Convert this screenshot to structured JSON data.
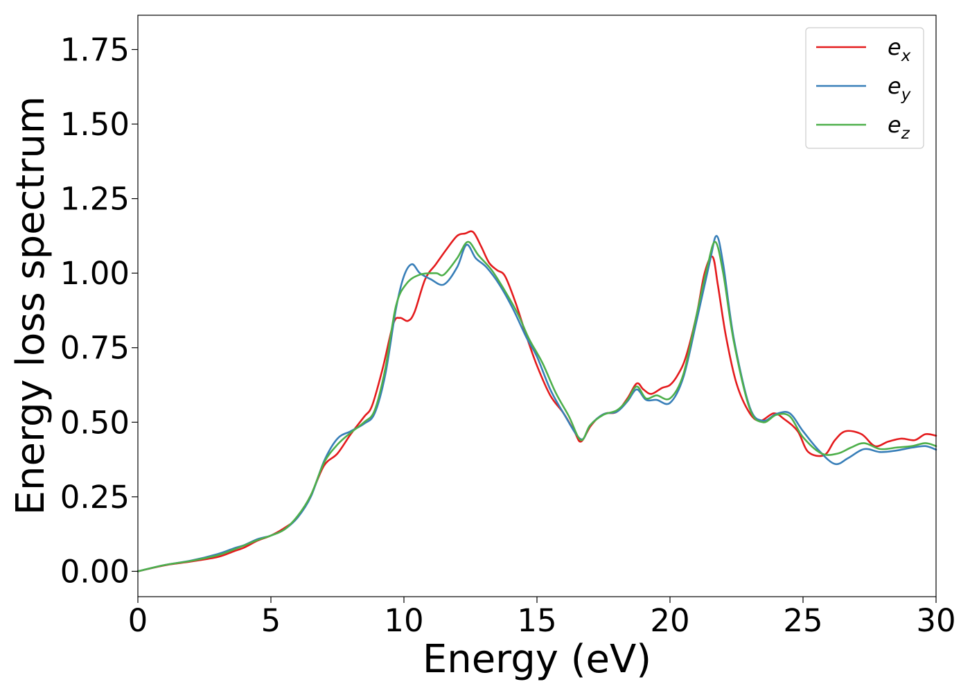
{
  "chart_data": {
    "type": "line",
    "title": "",
    "xlabel": "Energy (eV)",
    "ylabel": "Energy loss spectrum",
    "xlim": [
      0,
      30
    ],
    "ylim": [
      -0.085,
      1.865
    ],
    "xticks": [
      0,
      5,
      10,
      15,
      20,
      25,
      30
    ],
    "xtick_labels": [
      "0",
      "5",
      "10",
      "15",
      "20",
      "25",
      "30"
    ],
    "yticks": [
      0,
      0.25,
      0.5,
      0.75,
      1.0,
      1.25,
      1.5,
      1.75
    ],
    "ytick_labels": [
      "0.00",
      "0.25",
      "0.50",
      "0.75",
      "1.00",
      "1.25",
      "1.50",
      "1.75"
    ],
    "grid": false,
    "legend_position": "top-right",
    "series": [
      {
        "name": "e_x",
        "label_base": "e",
        "label_sub": "x",
        "color": "#e41a1c",
        "points": [
          [
            0,
            0
          ],
          [
            1,
            0.02
          ],
          [
            2,
            0.033
          ],
          [
            3,
            0.048
          ],
          [
            3.6,
            0.067
          ],
          [
            4,
            0.08
          ],
          [
            4.5,
            0.103
          ],
          [
            5,
            0.12
          ],
          [
            5.5,
            0.145
          ],
          [
            6,
            0.18
          ],
          [
            6.5,
            0.255
          ],
          [
            7,
            0.355
          ],
          [
            7.5,
            0.395
          ],
          [
            8,
            0.46
          ],
          [
            8.5,
            0.518
          ],
          [
            8.8,
            0.555
          ],
          [
            9.2,
            0.68
          ],
          [
            9.6,
            0.83
          ],
          [
            9.85,
            0.85
          ],
          [
            10.15,
            0.84
          ],
          [
            10.4,
            0.87
          ],
          [
            10.8,
            0.98
          ],
          [
            11.2,
            1.03
          ],
          [
            11.6,
            1.08
          ],
          [
            12,
            1.125
          ],
          [
            12.3,
            1.133
          ],
          [
            12.6,
            1.138
          ],
          [
            12.9,
            1.09
          ],
          [
            13.2,
            1.035
          ],
          [
            13.5,
            1.01
          ],
          [
            13.8,
            0.99
          ],
          [
            14.2,
            0.9
          ],
          [
            14.6,
            0.79
          ],
          [
            15,
            0.69
          ],
          [
            15.5,
            0.59
          ],
          [
            16,
            0.53
          ],
          [
            16.4,
            0.47
          ],
          [
            16.65,
            0.435
          ],
          [
            17,
            0.485
          ],
          [
            17.3,
            0.515
          ],
          [
            17.6,
            0.53
          ],
          [
            18,
            0.535
          ],
          [
            18.4,
            0.58
          ],
          [
            18.75,
            0.63
          ],
          [
            19,
            0.61
          ],
          [
            19.3,
            0.595
          ],
          [
            19.7,
            0.615
          ],
          [
            20,
            0.625
          ],
          [
            20.3,
            0.66
          ],
          [
            20.6,
            0.72
          ],
          [
            21,
            0.86
          ],
          [
            21.3,
            1.0
          ],
          [
            21.6,
            1.055
          ],
          [
            21.8,
            0.96
          ],
          [
            22.1,
            0.79
          ],
          [
            22.5,
            0.63
          ],
          [
            23,
            0.53
          ],
          [
            23.4,
            0.505
          ],
          [
            23.9,
            0.53
          ],
          [
            24.3,
            0.51
          ],
          [
            24.8,
            0.47
          ],
          [
            25.2,
            0.4
          ],
          [
            25.8,
            0.39
          ],
          [
            26.2,
            0.44
          ],
          [
            26.6,
            0.47
          ],
          [
            27.2,
            0.46
          ],
          [
            27.7,
            0.42
          ],
          [
            28.2,
            0.435
          ],
          [
            28.7,
            0.445
          ],
          [
            29.2,
            0.44
          ],
          [
            29.6,
            0.46
          ],
          [
            30,
            0.455
          ]
        ]
      },
      {
        "name": "e_y",
        "label_base": "e",
        "label_sub": "y",
        "color": "#377eb8",
        "points": [
          [
            0,
            0
          ],
          [
            1,
            0.021
          ],
          [
            2,
            0.036
          ],
          [
            3,
            0.058
          ],
          [
            3.6,
            0.077
          ],
          [
            4,
            0.088
          ],
          [
            4.5,
            0.108
          ],
          [
            5,
            0.12
          ],
          [
            5.5,
            0.14
          ],
          [
            6,
            0.18
          ],
          [
            6.5,
            0.25
          ],
          [
            7,
            0.37
          ],
          [
            7.5,
            0.445
          ],
          [
            8,
            0.47
          ],
          [
            8.5,
            0.495
          ],
          [
            8.9,
            0.53
          ],
          [
            9.3,
            0.66
          ],
          [
            9.7,
            0.88
          ],
          [
            10,
            0.99
          ],
          [
            10.3,
            1.03
          ],
          [
            10.6,
            1.0
          ],
          [
            11,
            0.98
          ],
          [
            11.5,
            0.962
          ],
          [
            12,
            1.02
          ],
          [
            12.35,
            1.095
          ],
          [
            12.7,
            1.05
          ],
          [
            13.1,
            1.02
          ],
          [
            13.6,
            0.96
          ],
          [
            14.1,
            0.88
          ],
          [
            14.6,
            0.785
          ],
          [
            15,
            0.72
          ],
          [
            15.5,
            0.61
          ],
          [
            16,
            0.53
          ],
          [
            16.65,
            0.443
          ],
          [
            17,
            0.49
          ],
          [
            17.5,
            0.527
          ],
          [
            18,
            0.535
          ],
          [
            18.4,
            0.57
          ],
          [
            18.75,
            0.61
          ],
          [
            19.1,
            0.575
          ],
          [
            19.5,
            0.575
          ],
          [
            20,
            0.565
          ],
          [
            20.5,
            0.65
          ],
          [
            21,
            0.84
          ],
          [
            21.5,
            1.04
          ],
          [
            21.75,
            1.125
          ],
          [
            22,
            1.03
          ],
          [
            22.4,
            0.78
          ],
          [
            23,
            0.55
          ],
          [
            23.5,
            0.505
          ],
          [
            24,
            0.528
          ],
          [
            24.5,
            0.53
          ],
          [
            25,
            0.47
          ],
          [
            25.6,
            0.405
          ],
          [
            26.2,
            0.36
          ],
          [
            26.7,
            0.38
          ],
          [
            27.3,
            0.41
          ],
          [
            27.9,
            0.4
          ],
          [
            28.5,
            0.405
          ],
          [
            29.1,
            0.415
          ],
          [
            29.6,
            0.42
          ],
          [
            30,
            0.408
          ]
        ]
      },
      {
        "name": "e_z",
        "label_base": "e",
        "label_sub": "z",
        "color": "#4daf4a",
        "points": [
          [
            0,
            0
          ],
          [
            1,
            0.021
          ],
          [
            2,
            0.035
          ],
          [
            3,
            0.054
          ],
          [
            3.6,
            0.073
          ],
          [
            4,
            0.087
          ],
          [
            4.5,
            0.105
          ],
          [
            5,
            0.12
          ],
          [
            5.5,
            0.14
          ],
          [
            6,
            0.185
          ],
          [
            6.5,
            0.255
          ],
          [
            7,
            0.365
          ],
          [
            7.5,
            0.425
          ],
          [
            8,
            0.465
          ],
          [
            8.5,
            0.5
          ],
          [
            8.9,
            0.54
          ],
          [
            9.3,
            0.68
          ],
          [
            9.7,
            0.89
          ],
          [
            10.1,
            0.965
          ],
          [
            10.6,
            0.995
          ],
          [
            11.2,
            1.0
          ],
          [
            11.5,
            0.995
          ],
          [
            12,
            1.05
          ],
          [
            12.4,
            1.105
          ],
          [
            12.8,
            1.06
          ],
          [
            13.3,
            1.01
          ],
          [
            13.8,
            0.94
          ],
          [
            14.3,
            0.86
          ],
          [
            14.7,
            0.78
          ],
          [
            15.2,
            0.7
          ],
          [
            15.7,
            0.6
          ],
          [
            16.2,
            0.52
          ],
          [
            16.65,
            0.44
          ],
          [
            17,
            0.49
          ],
          [
            17.5,
            0.525
          ],
          [
            18,
            0.54
          ],
          [
            18.4,
            0.575
          ],
          [
            18.75,
            0.62
          ],
          [
            19.1,
            0.58
          ],
          [
            19.5,
            0.59
          ],
          [
            20,
            0.58
          ],
          [
            20.5,
            0.66
          ],
          [
            21,
            0.86
          ],
          [
            21.4,
            1.02
          ],
          [
            21.7,
            1.105
          ],
          [
            22,
            1.0
          ],
          [
            22.4,
            0.77
          ],
          [
            23,
            0.545
          ],
          [
            23.5,
            0.5
          ],
          [
            24,
            0.525
          ],
          [
            24.5,
            0.52
          ],
          [
            25,
            0.45
          ],
          [
            25.7,
            0.395
          ],
          [
            26.3,
            0.395
          ],
          [
            26.8,
            0.415
          ],
          [
            27.3,
            0.43
          ],
          [
            27.9,
            0.41
          ],
          [
            28.5,
            0.415
          ],
          [
            29.1,
            0.42
          ],
          [
            29.6,
            0.43
          ],
          [
            30,
            0.42
          ]
        ]
      }
    ]
  }
}
